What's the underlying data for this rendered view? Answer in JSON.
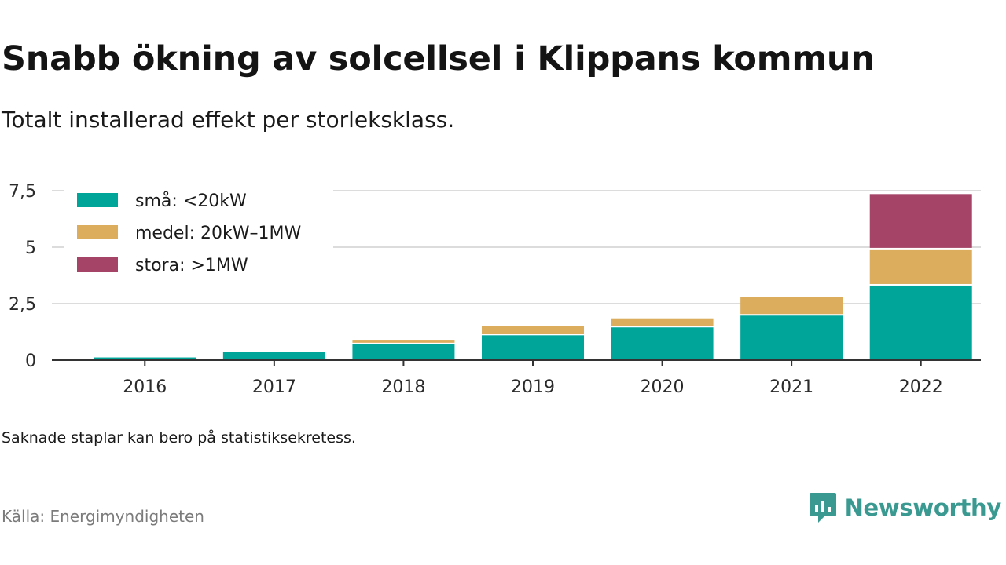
{
  "title": "Snabb ökning av solcellsel i Klippans kommun",
  "subtitle": "Totalt installerad effekt per storleksklass.",
  "note": "Saknade staplar kan bero på statistiksekretess.",
  "source": "Källa: Energimyndigheten",
  "brand": {
    "name": "Newsworthy",
    "icon": "newsworthy-logo-icon",
    "color": "#3a9a92"
  },
  "chart_data": {
    "type": "bar",
    "stacked": true,
    "categories": [
      "2016",
      "2017",
      "2018",
      "2019",
      "2020",
      "2021",
      "2022"
    ],
    "series": [
      {
        "name": "små: <20kW",
        "color": "#00a59a",
        "values": [
          0.12,
          0.35,
          0.7,
          1.1,
          1.45,
          1.97,
          3.3
        ]
      },
      {
        "name": "medel: 20kW–1MW",
        "color": "#dbad5c",
        "values": [
          0,
          0,
          0.2,
          0.42,
          0.4,
          0.83,
          1.6
        ]
      },
      {
        "name": "stora: >1MW",
        "color": "#a54467",
        "values": [
          0,
          0,
          0,
          0,
          0,
          0,
          2.45
        ]
      }
    ],
    "y_ticks": [
      {
        "value": 0,
        "label": "0"
      },
      {
        "value": 2.5,
        "label": "2,5"
      },
      {
        "value": 5,
        "label": "5"
      },
      {
        "value": 7.5,
        "label": "7,5"
      }
    ],
    "ylim": [
      0,
      7.5
    ],
    "grid": true,
    "legend": "top-left"
  }
}
